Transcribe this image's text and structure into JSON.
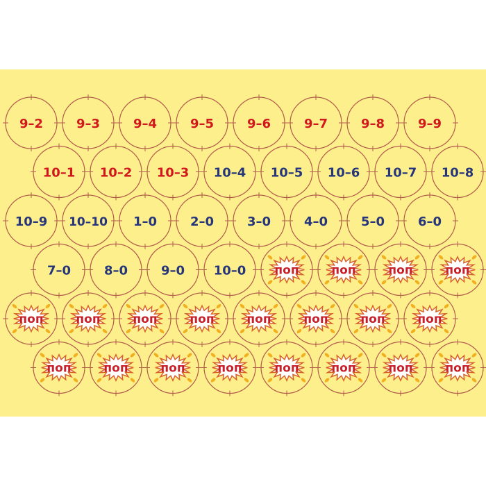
{
  "colors": {
    "background": "#fdf08c",
    "circle": "#b25a4a",
    "red_text": "#d2181c",
    "blue_text": "#27367a",
    "pop_red": "#c8202a",
    "pop_spark": "#f0b020"
  },
  "pop_label": "поп",
  "rows": [
    {
      "offset": false,
      "tokens": [
        {
          "text": "9–2",
          "color": "red"
        },
        {
          "text": "9–3",
          "color": "red"
        },
        {
          "text": "9–4",
          "color": "red"
        },
        {
          "text": "9–5",
          "color": "red"
        },
        {
          "text": "9–6",
          "color": "red"
        },
        {
          "text": "9–7",
          "color": "red"
        },
        {
          "text": "9–8",
          "color": "red"
        },
        {
          "text": "9–9",
          "color": "red"
        }
      ]
    },
    {
      "offset": true,
      "tokens": [
        {
          "text": "10–1",
          "color": "red"
        },
        {
          "text": "10–2",
          "color": "red"
        },
        {
          "text": "10–3",
          "color": "red"
        },
        {
          "text": "10–4",
          "color": "blue"
        },
        {
          "text": "10–5",
          "color": "blue"
        },
        {
          "text": "10–6",
          "color": "blue"
        },
        {
          "text": "10–7",
          "color": "blue"
        },
        {
          "text": "10–8",
          "color": "blue"
        }
      ]
    },
    {
      "offset": false,
      "tokens": [
        {
          "text": "10–9",
          "color": "blue"
        },
        {
          "text": "10–10",
          "color": "blue"
        },
        {
          "text": "1–0",
          "color": "blue"
        },
        {
          "text": "2–0",
          "color": "blue"
        },
        {
          "text": "3–0",
          "color": "blue"
        },
        {
          "text": "4–0",
          "color": "blue"
        },
        {
          "text": "5–0",
          "color": "blue"
        },
        {
          "text": "6–0",
          "color": "blue"
        }
      ]
    },
    {
      "offset": true,
      "tokens": [
        {
          "text": "7–0",
          "color": "blue"
        },
        {
          "text": "8–0",
          "color": "blue"
        },
        {
          "text": "9–0",
          "color": "blue"
        },
        {
          "text": "10–0",
          "color": "blue"
        },
        {
          "pop": true
        },
        {
          "pop": true
        },
        {
          "pop": true
        },
        {
          "pop": true
        }
      ]
    },
    {
      "offset": false,
      "tokens": [
        {
          "pop": true
        },
        {
          "pop": true
        },
        {
          "pop": true
        },
        {
          "pop": true
        },
        {
          "pop": true
        },
        {
          "pop": true
        },
        {
          "pop": true
        },
        {
          "pop": true
        }
      ]
    },
    {
      "offset": true,
      "tokens": [
        {
          "pop": true
        },
        {
          "pop": true
        },
        {
          "pop": true
        },
        {
          "pop": true
        },
        {
          "pop": true
        },
        {
          "pop": true
        },
        {
          "pop": true
        },
        {
          "pop": true
        }
      ]
    }
  ]
}
